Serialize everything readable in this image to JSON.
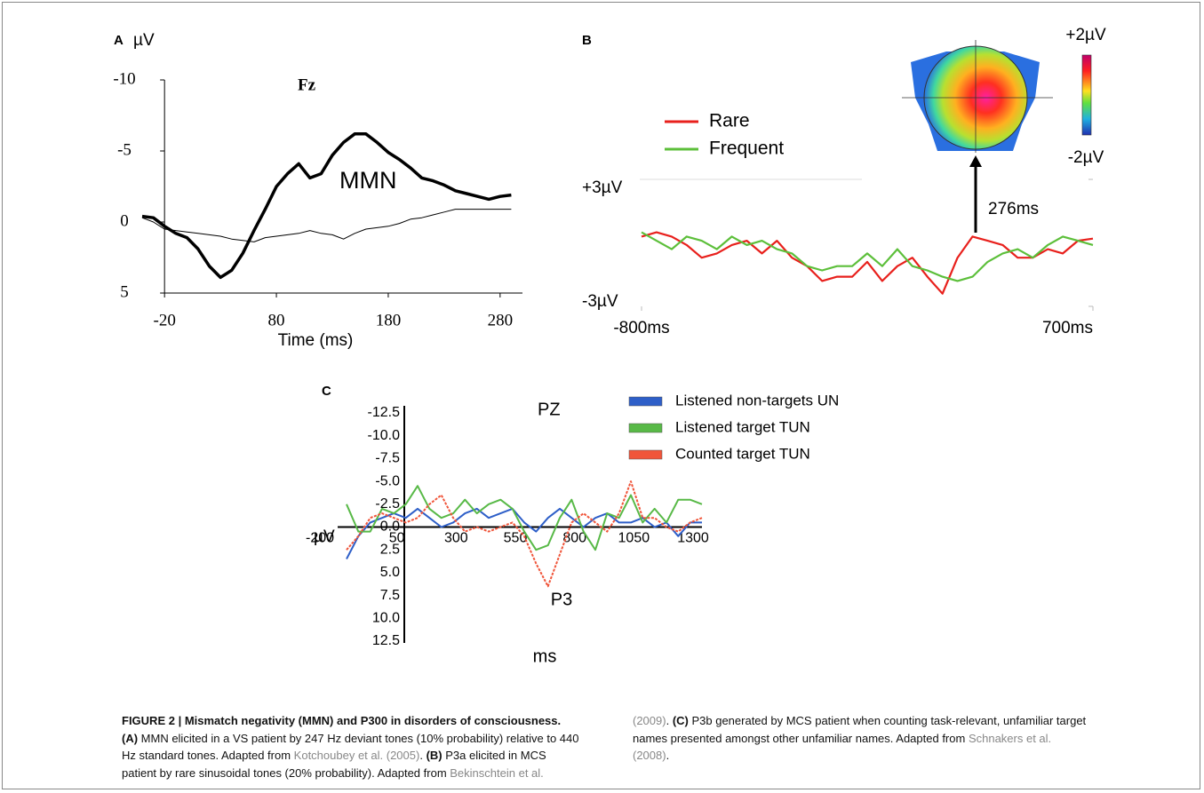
{
  "chart_data": [
    {
      "type": "line",
      "panel": "A",
      "y_unit": "µV",
      "title": "Fz",
      "annotation": "MMN",
      "xlabel": "Time (ms)",
      "x": [
        -40,
        -30,
        -20,
        -10,
        0,
        10,
        20,
        30,
        40,
        50,
        60,
        70,
        80,
        90,
        100,
        110,
        120,
        130,
        140,
        150,
        160,
        170,
        180,
        190,
        200,
        210,
        220,
        230,
        240,
        250,
        260,
        270,
        280,
        290
      ],
      "series": [
        {
          "color": "#000000",
          "linewidth": 3.5,
          "values": [
            -0.4,
            -0.3,
            0.3,
            0.8,
            1.1,
            1.9,
            3.1,
            3.9,
            3.4,
            2.2,
            0.6,
            -0.9,
            -2.5,
            -3.4,
            -4.1,
            -3.1,
            -3.4,
            -4.7,
            -5.6,
            -6.2,
            -6.2,
            -5.6,
            -4.9,
            -4.4,
            -3.8,
            -3.1,
            -2.9,
            -2.6,
            -2.2,
            -2.0,
            -1.8,
            -1.6,
            -1.8,
            -1.9
          ]
        },
        {
          "color": "#000000",
          "linewidth": 1,
          "values": [
            -0.3,
            0.0,
            0.5,
            0.6,
            0.7,
            0.8,
            0.9,
            1.0,
            1.2,
            1.3,
            1.4,
            1.1,
            1.0,
            0.9,
            0.8,
            0.6,
            0.8,
            0.9,
            1.2,
            0.8,
            0.5,
            0.4,
            0.3,
            0.1,
            -0.2,
            -0.3,
            -0.5,
            -0.7,
            -0.9,
            -0.9,
            -0.9,
            -0.9,
            -0.9,
            -0.9
          ]
        }
      ],
      "xlim": [
        -40,
        300
      ],
      "ylim": [
        5,
        -10
      ],
      "xticks": [
        -20,
        80,
        180,
        280
      ],
      "yticks": [
        -10,
        -5,
        0,
        5
      ]
    },
    {
      "type": "line",
      "panel": "B",
      "annotation": "276ms",
      "colorbar_labels": [
        "+2µV",
        "-2µV"
      ],
      "x": [
        -800,
        -750,
        -700,
        -650,
        -600,
        -550,
        -500,
        -450,
        -400,
        -350,
        -300,
        -250,
        -200,
        -150,
        -100,
        -50,
        0,
        50,
        100,
        150,
        200,
        250,
        300,
        350,
        400,
        450,
        500,
        550,
        600,
        650,
        700
      ],
      "series": [
        {
          "name": "Rare",
          "color": "#e8201c",
          "linewidth": 2.2,
          "values": [
            0.3,
            0.5,
            0.3,
            -0.1,
            -0.7,
            -0.5,
            -0.1,
            0.1,
            -0.5,
            0.1,
            -0.7,
            -1.1,
            -1.8,
            -1.6,
            -1.6,
            -0.9,
            -1.8,
            -1.1,
            -0.7,
            -1.6,
            -2.4,
            -0.7,
            0.3,
            0.1,
            -0.1,
            -0.7,
            -0.7,
            -0.3,
            -0.5,
            0.1,
            0.2
          ]
        },
        {
          "name": "Frequent",
          "color": "#5cbf3a",
          "linewidth": 2.2,
          "values": [
            0.5,
            0.1,
            -0.3,
            0.3,
            0.1,
            -0.3,
            0.3,
            -0.1,
            0.1,
            -0.3,
            -0.5,
            -1.1,
            -1.3,
            -1.1,
            -1.1,
            -0.5,
            -1.1,
            -0.3,
            -1.1,
            -1.3,
            -1.6,
            -1.8,
            -1.6,
            -0.9,
            -0.5,
            -0.3,
            -0.7,
            -0.1,
            0.3,
            0.1,
            -0.1
          ]
        }
      ],
      "xlim": [
        -800,
        700
      ],
      "ylim": [
        -3,
        3
      ],
      "xticks": [
        {
          "value": -800,
          "label": "-800ms"
        },
        {
          "value": 700,
          "label": "700ms"
        }
      ],
      "yticks": [
        {
          "value": 3,
          "label": "+3µV"
        },
        {
          "value": -3,
          "label": "-3µV"
        }
      ]
    },
    {
      "type": "line",
      "panel": "C",
      "title": "PZ",
      "y_unit": "µV",
      "annotation": "P3",
      "xlabel": "ms",
      "x": [
        -200,
        -150,
        -100,
        -50,
        0,
        50,
        100,
        150,
        200,
        250,
        300,
        350,
        400,
        450,
        500,
        550,
        600,
        650,
        700,
        750,
        800,
        850,
        900,
        950,
        1000,
        1050,
        1100,
        1150,
        1200,
        1250,
        1300
      ],
      "series": [
        {
          "name": "Listened non-targets UN",
          "color": "#2e5fc8",
          "linewidth": 2,
          "values": [
            3.5,
            1.0,
            -0.5,
            -1.0,
            -1.5,
            -1.0,
            -2.0,
            -1.0,
            0,
            -0.5,
            -1.5,
            -2.0,
            -1.0,
            -1.5,
            -2.0,
            -0.5,
            0.5,
            -1.0,
            -2.0,
            -1.0,
            0,
            -1.0,
            -1.5,
            -0.5,
            -0.5,
            -1.0,
            0,
            -0.5,
            1.0,
            -0.5,
            -0.5
          ]
        },
        {
          "name": "Listened target TUN",
          "color": "#58b947",
          "linewidth": 2,
          "values": [
            -2.5,
            0.5,
            0.5,
            -2.0,
            -1.5,
            -2.5,
            -4.5,
            -2.0,
            -1.0,
            -1.5,
            -3.0,
            -1.5,
            -2.5,
            -3.0,
            -2.0,
            0.5,
            2.5,
            2.0,
            -1.0,
            -3.0,
            0.5,
            2.5,
            -1.5,
            -1.0,
            -3.5,
            -0.5,
            -2.0,
            -0.5,
            -3.0,
            -3.0,
            -2.5
          ]
        },
        {
          "name": "Counted target TUN",
          "color": "#f0553a",
          "linewidth": 2,
          "dashed": true,
          "values": [
            2.5,
            1.0,
            -1.0,
            -1.5,
            -1.0,
            -0.5,
            -1.0,
            -2.5,
            -3.5,
            -1.0,
            0.5,
            0,
            0.5,
            0,
            -0.5,
            1.0,
            4.0,
            6.5,
            3.0,
            -0.5,
            -1.5,
            -0.5,
            0.5,
            -1.5,
            -5.0,
            -1.0,
            -1.0,
            0,
            0.5,
            -0.5,
            -1.0
          ]
        }
      ],
      "xlim": [
        -200,
        1300
      ],
      "ylim": [
        12.5,
        -12.5
      ],
      "xticks": [
        -200,
        50,
        300,
        550,
        800,
        1050,
        1300
      ],
      "yticks": [
        -12.5,
        {
          "value": -10,
          "label": "-10.0"
        },
        -7.5,
        {
          "value": -5,
          "label": "-5.0"
        },
        -2.5,
        {
          "value": 0,
          "label": "0.0"
        },
        2.5,
        {
          "value": 5,
          "label": "5.0"
        },
        7.5,
        {
          "value": 10,
          "label": "10.0"
        },
        12.5
      ]
    }
  ],
  "caption": {
    "title": "FIGURE 2 | Mismatch negativity (MMN) and P300 in disorders of consciousness.",
    "parts": [
      "(A)",
      " MMN elicited in a VS patient by 247 Hz deviant tones (10% probability) relative to 440 Hz standard tones. Adapted from ",
      "Kotchoubey et al. (2005)",
      ". ",
      "(B)",
      " P3a elicited in MCS patient by rare sinusoidal tones (20% probability). Adapted from ",
      "Bekinschtein et al. (2009)",
      ". ",
      "(C)",
      " P3b generated by MCS patient when counting task-relevant, unfamiliar target names presented amongst other unfamiliar names. Adapted from ",
      "Schnakers et al. (2008)",
      "."
    ]
  }
}
